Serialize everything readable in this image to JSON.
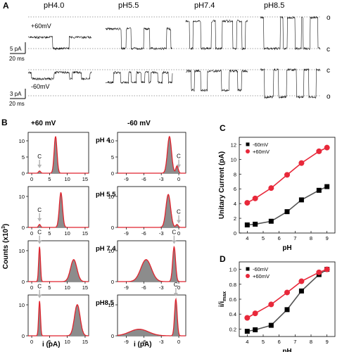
{
  "panels": {
    "a": "A",
    "b": "B",
    "c": "C",
    "d": "D"
  },
  "panel_a": {
    "ph_headers": [
      "pH4.0",
      "pH5.5",
      "pH7.4",
      "pH8.5"
    ],
    "top_voltage": "+60mV",
    "bottom_voltage": "-60mV",
    "top_scale": {
      "current": "5 pA",
      "time": "20 ms"
    },
    "bottom_scale": {
      "current": "3 pA",
      "time": "20 ms"
    },
    "top_right_labels": [
      "o",
      "c"
    ],
    "bottom_right_labels": [
      "c",
      "o"
    ]
  },
  "panel_b": {
    "col_headers": [
      "+60 mV",
      "-60 mV"
    ],
    "row_labels": [
      "pH 4",
      "pH 5.5",
      "pH 7.4",
      "pH8.5"
    ],
    "closed_marker": "C",
    "ylabel": "Counts (x10",
    "ylabel_sup": "3",
    "ylabel_end": ")",
    "xlabel": "i (pA)",
    "left_xticks": [
      "0",
      "5",
      "10",
      "15"
    ],
    "right_xticks": [
      "-9",
      "-6",
      "-3",
      "0"
    ],
    "yticks_row1": [
      "10",
      "5",
      "0"
    ],
    "yticks_rows": [
      "10",
      "0"
    ]
  },
  "chart_data": [
    {
      "id": "C",
      "type": "line",
      "xlabel": "pH",
      "ylabel": "Unitary Current (pA)",
      "xlim": [
        3.5,
        9.5
      ],
      "ylim": [
        0,
        13
      ],
      "xticks": [
        4,
        5,
        6,
        7,
        8,
        9
      ],
      "yticks": [
        0,
        2,
        4,
        6,
        8,
        10,
        12
      ],
      "series": [
        {
          "name": "-60mV",
          "marker": "square",
          "color": "#000000",
          "x": [
            4,
            4.5,
            5.5,
            6.5,
            7.4,
            8.5,
            9
          ],
          "y": [
            1.1,
            1.2,
            1.6,
            2.9,
            4.5,
            5.8,
            6.3
          ]
        },
        {
          "name": "+60mV",
          "marker": "circle",
          "color": "#e8283a",
          "x": [
            4,
            4.5,
            5.5,
            6.5,
            7.4,
            8.5,
            9
          ],
          "y": [
            4.1,
            4.7,
            6.1,
            7.9,
            9.5,
            11.1,
            11.6
          ]
        }
      ]
    },
    {
      "id": "D",
      "type": "line",
      "xlabel": "pH",
      "ylabel": "i/i",
      "ylabel_sub": "max",
      "xlim": [
        3.5,
        9.5
      ],
      "ylim": [
        0.1,
        1.1
      ],
      "xticks": [
        4,
        5,
        6,
        7,
        8,
        9
      ],
      "yticks": [
        0.2,
        0.4,
        0.6,
        0.8,
        1.0
      ],
      "ytick_labels": [
        "0.2",
        "0.4",
        "0.6",
        "0.8",
        "1.0"
      ],
      "series": [
        {
          "name": "-60mV",
          "marker": "square",
          "color": "#000000",
          "x": [
            4,
            4.5,
            5.5,
            6.5,
            7.4,
            8.5,
            9
          ],
          "y": [
            0.17,
            0.19,
            0.25,
            0.46,
            0.71,
            0.93,
            1.0
          ]
        },
        {
          "name": "+60mV",
          "marker": "circle",
          "color": "#e8283a",
          "x": [
            4,
            4.5,
            5.5,
            6.5,
            7.4,
            8.5,
            9
          ],
          "y": [
            0.35,
            0.41,
            0.53,
            0.69,
            0.84,
            0.96,
            1.0
          ]
        }
      ]
    }
  ],
  "colors": {
    "fill": "#8c8c8c",
    "fit": "#e0232d",
    "arrow": "#b5b5b5"
  }
}
